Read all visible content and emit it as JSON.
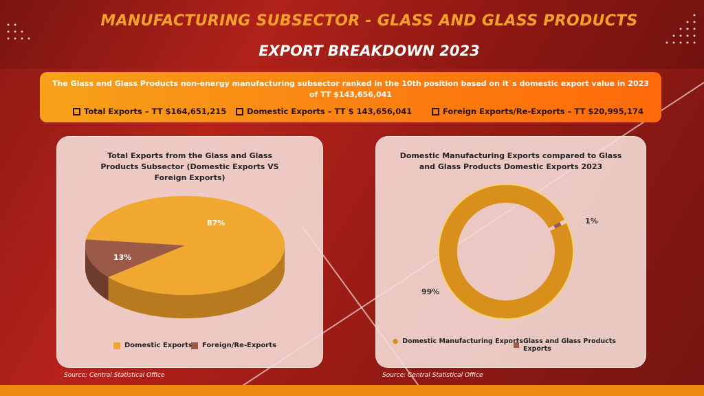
{
  "header": {
    "title": "MANUFACTURING SUBSECTOR - GLASS AND GLASS PRODUCTS",
    "subtitle": "EXPORT BREAKDOWN 2023"
  },
  "banner": {
    "line1": "The Glass and Glass Products non-energy manufacturing subsector ranked in the 10th position based on it`s domestic export value in 2023",
    "line2": "of  TT $143,656,041",
    "stats": [
      "Total Exports – TT $164,651,215",
      "Domestic Exports – TT $ 143,656,041",
      "Foreign Exports/Re-Exports – TT $20,995,174"
    ]
  },
  "colors": {
    "orange": "#f0a830",
    "brown": "#9a5a46",
    "gold": "#d98f1c"
  },
  "chart_data": [
    {
      "type": "pie",
      "title": "Total Exports from the Glass and Glass Products Subsector (Domestic Exports VS Foreign Exports)",
      "categories": [
        "Domestic Exports",
        "Foreign/Re-Exports"
      ],
      "values": [
        87,
        13
      ],
      "labels": [
        "87%",
        "13%"
      ],
      "legend": "bottom",
      "source": "Source: Central Statistical Office"
    },
    {
      "type": "pie",
      "variant": "donut",
      "title": "Domestic Manufacturing Exports compared to Glass and Glass Products Domestic Exports 2023",
      "categories": [
        "Domestic Manufacturing Exports",
        "Glass and Glass Products Exports"
      ],
      "values": [
        99,
        1
      ],
      "labels": [
        "99%",
        "1%"
      ],
      "legend": "bottom",
      "source": "Source: Central Statistical Office"
    }
  ]
}
